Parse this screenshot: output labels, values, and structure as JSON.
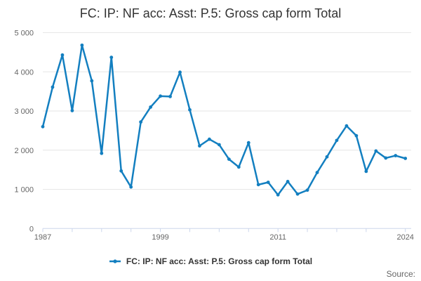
{
  "title": "FC: IP: NF acc: Asst: P.5: Gross cap form Total",
  "legend": {
    "label": "FC: IP: NF acc: Asst: P.5: Gross cap form Total"
  },
  "source_label": "Source:",
  "colors": {
    "series": "#137fc0",
    "grid": "#e6e6e6",
    "axis": "#ccd6eb",
    "axis_label": "#666666",
    "title_text": "#333333",
    "legend_text": "#333333",
    "source_text": "#666666"
  },
  "chart_data": {
    "type": "line",
    "title": "FC: IP: NF acc: Asst: P.5: Gross cap form Total",
    "xlabel": "",
    "ylabel": "",
    "x": [
      1987,
      1988,
      1989,
      1990,
      1991,
      1992,
      1993,
      1994,
      1995,
      1996,
      1997,
      1998,
      1999,
      2000,
      2001,
      2002,
      2003,
      2004,
      2005,
      2006,
      2007,
      2008,
      2009,
      2010,
      2011,
      2012,
      2013,
      2014,
      2015,
      2016,
      2017,
      2018,
      2019,
      2020,
      2021,
      2022,
      2023,
      2024
    ],
    "series": [
      {
        "name": "FC: IP: NF acc: Asst: P.5: Gross cap form Total",
        "values": [
          2600,
          3610,
          4430,
          3010,
          4680,
          3770,
          1920,
          4370,
          1470,
          1060,
          2720,
          3100,
          3380,
          3370,
          3990,
          3030,
          2110,
          2280,
          2140,
          1770,
          1570,
          2190,
          1120,
          1180,
          860,
          1200,
          880,
          980,
          1430,
          1830,
          2250,
          2620,
          2370,
          1460,
          1980,
          1800,
          1860,
          1790
        ]
      }
    ],
    "xlim": [
      1987,
      2024
    ],
    "ylim": [
      0,
      5000
    ],
    "y_ticks": [
      0,
      1000,
      2000,
      3000,
      4000,
      5000
    ],
    "y_tick_labels": [
      "0",
      "1 000",
      "2 000",
      "3 000",
      "4 000",
      "5 000"
    ],
    "x_ticks": [
      1987,
      1990,
      1993,
      1996,
      1999,
      2002,
      2005,
      2008,
      2011,
      2014,
      2017,
      2020,
      2024
    ],
    "x_labeled_ticks": [
      1987,
      1999,
      2011,
      2024
    ],
    "grid": true,
    "markers": true,
    "legend_position": "bottom"
  }
}
